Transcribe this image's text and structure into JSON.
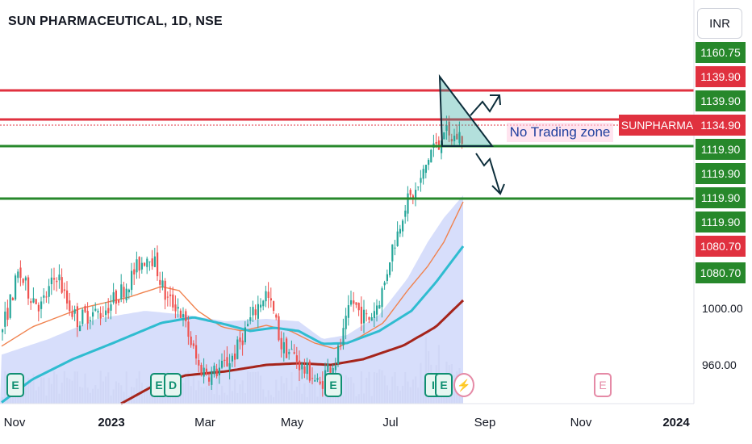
{
  "header": {
    "title": "SUN PHARMACEUTICAL, 1D, NSE",
    "currency": "INR"
  },
  "price_tags": [
    {
      "label": "1160.75",
      "color": "green",
      "row": 0
    },
    {
      "label": "1139.90",
      "color": "red",
      "row": 1
    },
    {
      "label": "1139.90",
      "color": "green",
      "row": 2
    },
    {
      "label": "1134.90",
      "color": "red",
      "row": 3
    },
    {
      "label": "1119.90",
      "color": "green",
      "row": 4
    },
    {
      "label": "1119.90",
      "color": "green",
      "row": 5
    },
    {
      "label": "1119.90",
      "color": "green",
      "row": 6
    },
    {
      "label": "1119.90",
      "color": "green",
      "row": 7
    },
    {
      "label": "1080.70",
      "color": "red",
      "row": 8
    },
    {
      "label": "1080.70",
      "color": "green",
      "row": 9
    }
  ],
  "symbol_tag": "SUNPHARMA",
  "zone_label": "No Trading zone",
  "y_axis_labels": [
    "1000.00",
    "960.00"
  ],
  "x_axis_labels": [
    "Nov",
    "2023",
    "Mar",
    "May",
    "Jul",
    "Sep",
    "Nov",
    "2024"
  ],
  "event_markers": [
    {
      "label": "E",
      "style": "green"
    },
    {
      "label": "E",
      "style": "green"
    },
    {
      "label": "D",
      "style": "green"
    },
    {
      "label": "E",
      "style": "green"
    },
    {
      "label": "I",
      "style": "green"
    },
    {
      "label": "E",
      "style": "green"
    },
    {
      "label": "⚡",
      "style": "pink-circle"
    },
    {
      "label": "E",
      "style": "pink"
    }
  ],
  "colors": {
    "up_candle": "#26a69a",
    "down_candle": "#ef5350",
    "resistance_line": "#e0313f",
    "support_line": "#27882b",
    "ma_fast": "#f0824e",
    "ma_mid": "#2fbcd0",
    "ma_slow": "#a5241b",
    "ma_fill": "#c9d3fa"
  },
  "chart_data": {
    "type": "candlestick",
    "title": "SUN PHARMACEUTICAL, 1D, NSE",
    "x_range": [
      "2022-10",
      "2024-01"
    ],
    "ylim": [
      940,
      1170
    ],
    "horizontal_levels": [
      {
        "value": 1139.9,
        "color": "red"
      },
      {
        "value": 1129.5,
        "color": "red"
      },
      {
        "value": 1120.5,
        "color": "green"
      },
      {
        "value": 1080.7,
        "color": "green"
      }
    ],
    "current_price": 1134.9,
    "approx_closes": [
      {
        "x": "2022-10",
        "y": 990
      },
      {
        "x": "2022-11",
        "y": 1030
      },
      {
        "x": "2022-12",
        "y": 1010
      },
      {
        "x": "2023-01",
        "y": 1010
      },
      {
        "x": "2023-02",
        "y": 1040
      },
      {
        "x": "2023-03",
        "y": 958
      },
      {
        "x": "2023-04",
        "y": 975
      },
      {
        "x": "2023-05",
        "y": 950
      },
      {
        "x": "2023-06",
        "y": 995
      },
      {
        "x": "2023-07",
        "y": 1090
      },
      {
        "x": "2023-08",
        "y": 1135
      }
    ]
  }
}
